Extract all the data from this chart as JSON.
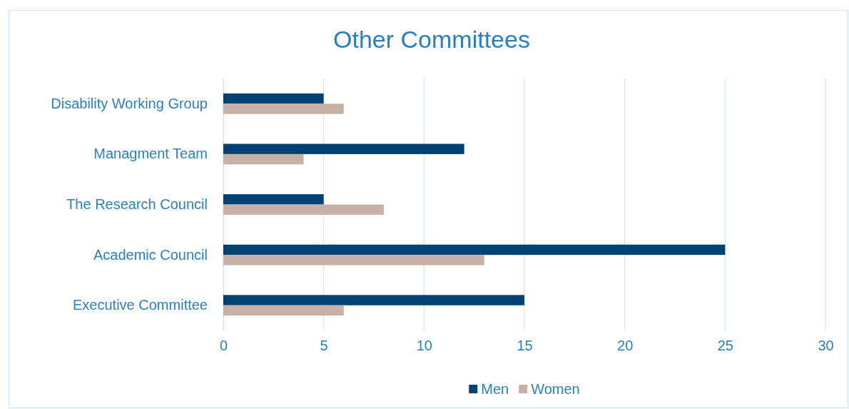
{
  "chart_data": {
    "type": "bar",
    "orientation": "horizontal",
    "title": "Other Committees",
    "categories": [
      "Disability Working Group",
      "Managment Team",
      "The Research Council",
      "Academic Council",
      "Executive Committee"
    ],
    "series": [
      {
        "name": "Men",
        "color": "#004174",
        "values": [
          5,
          12,
          5,
          25,
          15
        ]
      },
      {
        "name": "Women",
        "color": "#c7b1a5",
        "values": [
          6,
          4,
          8,
          13,
          6
        ]
      }
    ],
    "xlim": [
      0,
      30
    ],
    "xticks": [
      0,
      5,
      10,
      15,
      20,
      25,
      30
    ],
    "grid": "x",
    "legend": "bottom"
  }
}
